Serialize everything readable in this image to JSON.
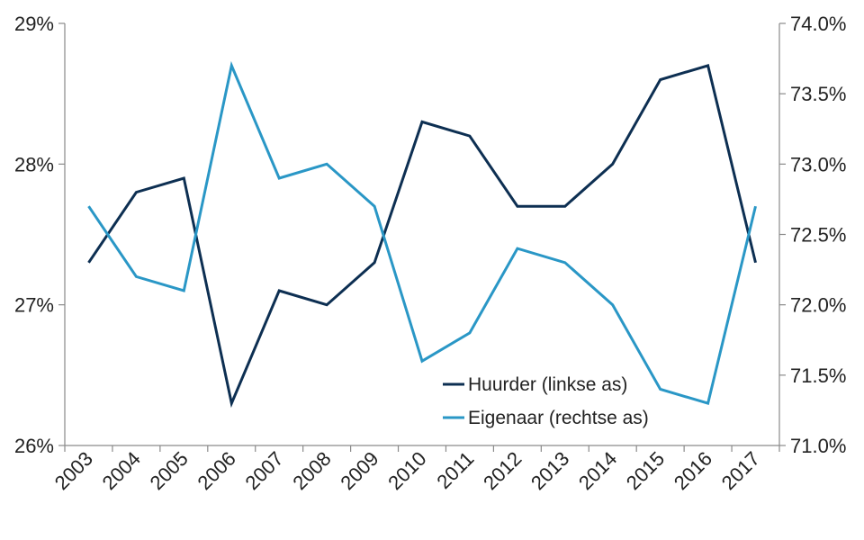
{
  "chart_data": {
    "type": "line",
    "categories": [
      "2003",
      "2004",
      "2005",
      "2006",
      "2007",
      "2008",
      "2009",
      "2010",
      "2011",
      "2012",
      "2013",
      "2014",
      "2015",
      "2016",
      "2017"
    ],
    "y_left": {
      "range": [
        26,
        29
      ],
      "ticks": [
        "26%",
        "27%",
        "28%",
        "29%"
      ],
      "tick_values": [
        26,
        27,
        28,
        29
      ]
    },
    "y_right": {
      "range": [
        71.0,
        74.0
      ],
      "ticks": [
        "71.0%",
        "71.5%",
        "72.0%",
        "72.5%",
        "73.0%",
        "73.5%",
        "74.0%"
      ],
      "tick_values": [
        71.0,
        71.5,
        72.0,
        72.5,
        73.0,
        73.5,
        74.0
      ]
    },
    "series": [
      {
        "name": "Huurder (linkse as)",
        "axis": "left",
        "color": "#0d2f52",
        "values": [
          27.3,
          27.8,
          27.9,
          26.3,
          27.1,
          27.0,
          27.3,
          28.3,
          28.2,
          27.7,
          27.7,
          28.0,
          28.6,
          28.7,
          27.3
        ]
      },
      {
        "name": "Eigenaar (rechtse as)",
        "axis": "right",
        "color": "#2a97c6",
        "values": [
          72.7,
          72.2,
          72.1,
          73.7,
          72.9,
          73.0,
          72.7,
          71.6,
          71.8,
          72.4,
          72.3,
          72.0,
          71.4,
          71.3,
          72.7
        ]
      }
    ],
    "legend_position": "bottom-center",
    "grid": false
  }
}
